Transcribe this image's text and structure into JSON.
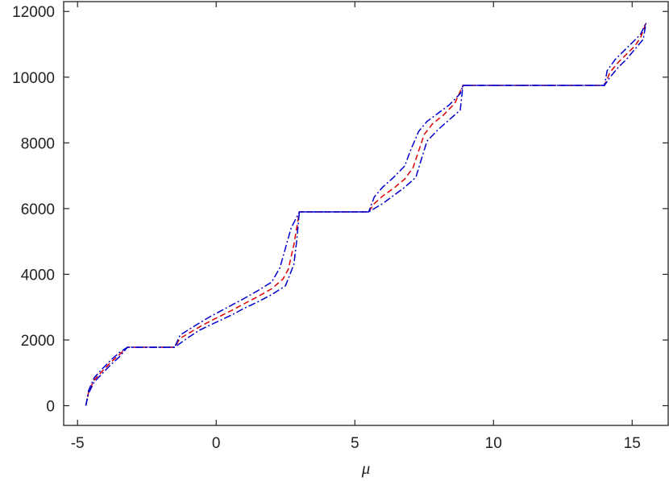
{
  "chart_data": {
    "type": "line",
    "title": "",
    "xlabel": "μ",
    "ylabel": "",
    "xlim": [
      -5.5,
      16.3
    ],
    "ylim": [
      -600,
      12300
    ],
    "x_ticks": [
      -5,
      0,
      5,
      10,
      15
    ],
    "x_tick_labels": [
      "-5",
      "0",
      "5",
      "10",
      "15"
    ],
    "y_ticks": [
      0,
      2000,
      4000,
      6000,
      8000,
      10000,
      12000
    ],
    "y_tick_labels": [
      "0",
      "2000",
      "4000",
      "6000",
      "8000",
      "10000",
      "12000"
    ],
    "grid": false,
    "series": [
      {
        "color": "#dd0000",
        "style": "dashed",
        "points": [
          [
            -4.7,
            0
          ],
          [
            -4.6,
            430
          ],
          [
            -4.4,
            780
          ],
          [
            -4.1,
            1060
          ],
          [
            -3.8,
            1320
          ],
          [
            -3.5,
            1550
          ],
          [
            -3.2,
            1780
          ],
          [
            -1.5,
            1780
          ],
          [
            -1.3,
            2050
          ],
          [
            -1.0,
            2200
          ],
          [
            -0.6,
            2400
          ],
          [
            -0.2,
            2580
          ],
          [
            0.2,
            2750
          ],
          [
            0.6,
            2920
          ],
          [
            1.0,
            3100
          ],
          [
            1.5,
            3320
          ],
          [
            2.0,
            3560
          ],
          [
            2.4,
            3850
          ],
          [
            2.6,
            4150
          ],
          [
            2.8,
            4900
          ],
          [
            3.0,
            5900
          ],
          [
            5.5,
            5900
          ],
          [
            5.7,
            6150
          ],
          [
            6.0,
            6380
          ],
          [
            6.4,
            6620
          ],
          [
            6.8,
            6900
          ],
          [
            7.1,
            7250
          ],
          [
            7.3,
            7750
          ],
          [
            7.5,
            8250
          ],
          [
            7.8,
            8580
          ],
          [
            8.2,
            8850
          ],
          [
            8.6,
            9200
          ],
          [
            8.9,
            9750
          ],
          [
            14.0,
            9750
          ],
          [
            14.2,
            10150
          ],
          [
            14.5,
            10450
          ],
          [
            14.8,
            10700
          ],
          [
            15.1,
            10950
          ],
          [
            15.3,
            11200
          ],
          [
            15.5,
            11650
          ]
        ]
      },
      {
        "color": "#0000cc",
        "style": "dash-dot",
        "points": [
          [
            -4.7,
            0
          ],
          [
            -4.6,
            470
          ],
          [
            -4.4,
            850
          ],
          [
            -4.1,
            1130
          ],
          [
            -3.8,
            1390
          ],
          [
            -3.5,
            1610
          ],
          [
            -3.2,
            1780
          ],
          [
            -1.5,
            1780
          ],
          [
            -1.3,
            2150
          ],
          [
            -1.0,
            2310
          ],
          [
            -0.6,
            2520
          ],
          [
            -0.2,
            2720
          ],
          [
            0.2,
            2900
          ],
          [
            0.6,
            3080
          ],
          [
            1.0,
            3260
          ],
          [
            1.5,
            3500
          ],
          [
            2.0,
            3760
          ],
          [
            2.3,
            4200
          ],
          [
            2.5,
            4800
          ],
          [
            2.7,
            5400
          ],
          [
            3.0,
            5900
          ],
          [
            5.5,
            5900
          ],
          [
            5.7,
            6350
          ],
          [
            6.0,
            6650
          ],
          [
            6.4,
            6950
          ],
          [
            6.8,
            7300
          ],
          [
            7.0,
            7750
          ],
          [
            7.3,
            8350
          ],
          [
            7.6,
            8650
          ],
          [
            8.0,
            8900
          ],
          [
            8.4,
            9150
          ],
          [
            8.8,
            9500
          ],
          [
            8.9,
            9750
          ],
          [
            14.0,
            9750
          ],
          [
            14.1,
            10200
          ],
          [
            14.4,
            10550
          ],
          [
            14.7,
            10800
          ],
          [
            15.0,
            11050
          ],
          [
            15.3,
            11300
          ],
          [
            15.5,
            11650
          ]
        ]
      },
      {
        "color": "#0000cc",
        "style": "dash-dot",
        "points": [
          [
            -4.7,
            0
          ],
          [
            -4.6,
            380
          ],
          [
            -4.4,
            720
          ],
          [
            -4.1,
            990
          ],
          [
            -3.8,
            1250
          ],
          [
            -3.5,
            1480
          ],
          [
            -3.2,
            1780
          ],
          [
            -1.5,
            1780
          ],
          [
            -1.3,
            1900
          ],
          [
            -1.0,
            2080
          ],
          [
            -0.6,
            2300
          ],
          [
            -0.2,
            2460
          ],
          [
            0.2,
            2620
          ],
          [
            0.6,
            2780
          ],
          [
            1.0,
            2960
          ],
          [
            1.5,
            3160
          ],
          [
            2.0,
            3380
          ],
          [
            2.5,
            3650
          ],
          [
            2.8,
            4300
          ],
          [
            2.9,
            5000
          ],
          [
            3.0,
            5900
          ],
          [
            5.5,
            5900
          ],
          [
            5.7,
            6000
          ],
          [
            6.0,
            6150
          ],
          [
            6.4,
            6400
          ],
          [
            6.8,
            6650
          ],
          [
            7.2,
            6950
          ],
          [
            7.4,
            7500
          ],
          [
            7.6,
            8050
          ],
          [
            8.0,
            8400
          ],
          [
            8.4,
            8700
          ],
          [
            8.8,
            9000
          ],
          [
            8.9,
            9750
          ],
          [
            14.0,
            9750
          ],
          [
            14.2,
            10000
          ],
          [
            14.5,
            10300
          ],
          [
            14.8,
            10550
          ],
          [
            15.1,
            10850
          ],
          [
            15.4,
            11150
          ],
          [
            15.5,
            11650
          ]
        ]
      }
    ]
  }
}
